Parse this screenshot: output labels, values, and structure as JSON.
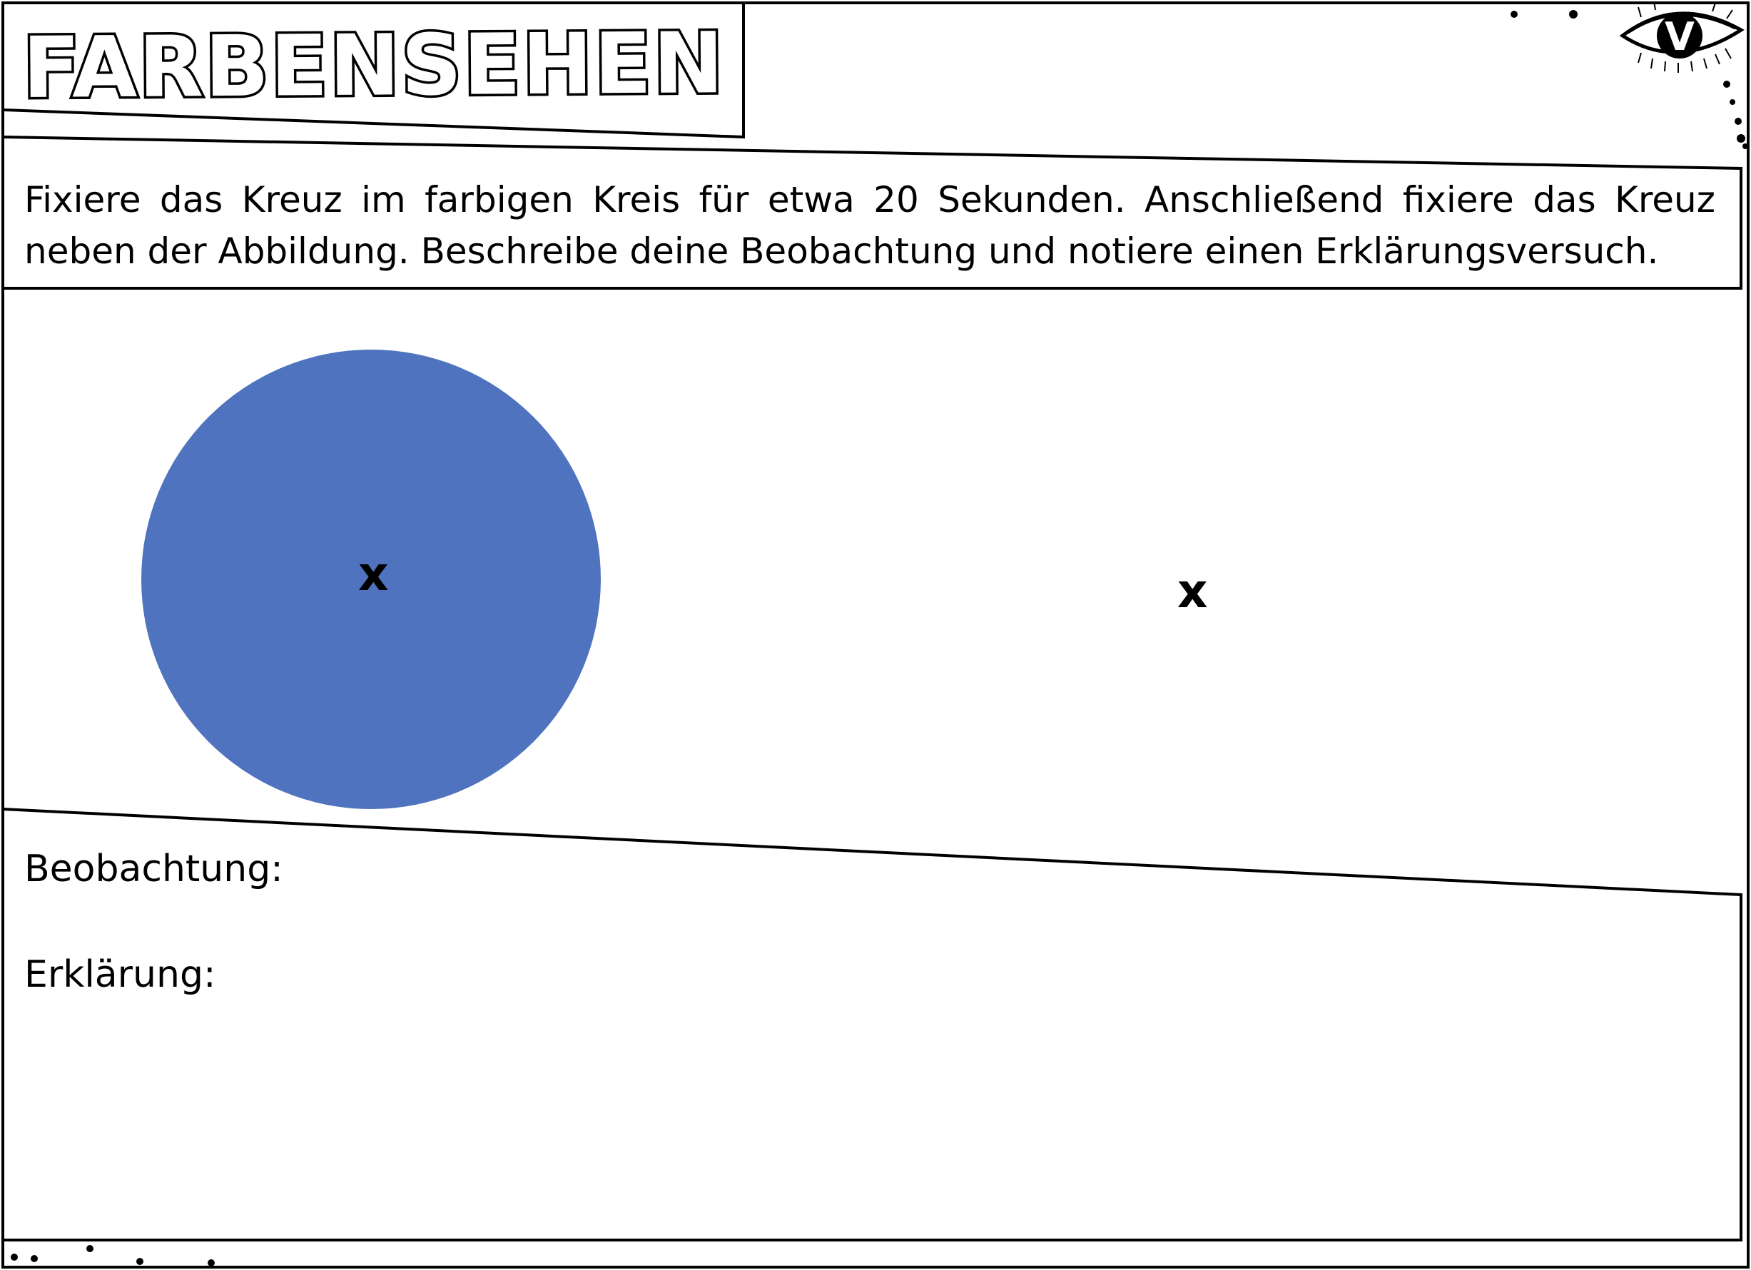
{
  "worksheet": {
    "title": "FARBENSEHEN",
    "instruction": "Fixiere das Kreuz im farbigen Kreis für etwa 20 Sekunden. Anschließend fixiere das Kreuz neben der Abbildung. Beschreibe deine Beobachtung und notiere einen Erklärungsversuch.",
    "stimulus": {
      "circle_color": "#4F73BE",
      "cross_in_circle": "x",
      "cross_beside": "x"
    },
    "answer_area": {
      "observation_label": "Beobachtung:",
      "explanation_label": "Erklärung:"
    },
    "corner_badge": {
      "icon": "eye-icon",
      "letter": "V"
    }
  }
}
